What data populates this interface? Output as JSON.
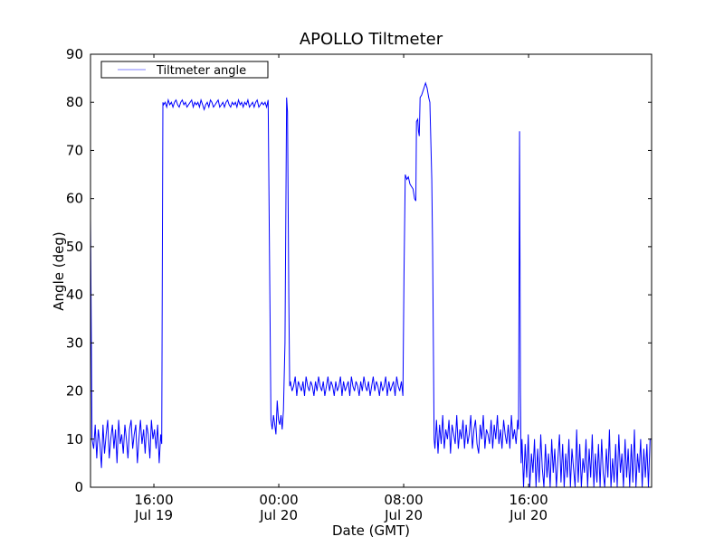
{
  "chart_data": {
    "type": "line",
    "title": "APOLLO Tiltmeter",
    "xlabel": "Date (GMT)",
    "ylabel": "Angle (deg)",
    "x_units": "hours since Jul 19 00:00 GMT",
    "xlim": [
      11.94,
      47.88
    ],
    "ylim": [
      0,
      90
    ],
    "yticks": [
      0,
      10,
      20,
      30,
      40,
      50,
      60,
      70,
      80,
      90
    ],
    "xticks": [
      {
        "value": 16,
        "time": "16:00",
        "date": "Jul 19"
      },
      {
        "value": 24,
        "time": "00:00",
        "date": "Jul 20"
      },
      {
        "value": 32,
        "time": "08:00",
        "date": "Jul 20"
      },
      {
        "value": 40,
        "time": "16:00",
        "date": "Jul 20"
      }
    ],
    "legend": {
      "position": "top-left",
      "entries": [
        "Tiltmeter angle"
      ]
    },
    "grid": false,
    "color": "#0000ff",
    "series": [
      {
        "name": "Tiltmeter angle",
        "segments": [
          {
            "start": 11.94,
            "step": 0.1,
            "values": [
              56,
              10,
              8,
              13,
              6,
              12,
              9,
              4,
              13,
              7,
              11,
              14,
              6,
              10,
              13,
              8,
              12,
              5,
              14,
              9,
              11,
              7,
              13,
              10,
              6,
              12,
              14,
              8,
              11,
              13,
              5,
              10,
              14,
              9,
              12,
              7,
              13,
              11,
              6,
              14,
              10,
              12,
              8,
              13,
              5,
              11
            ]
          },
          {
            "points": [
              [
                16.5,
                9
              ],
              [
                16.58,
                80
              ]
            ]
          },
          {
            "start": 16.62,
            "step": 0.1,
            "values": [
              79.5,
              80,
              79,
              80.5,
              79.5,
              80,
              79,
              80,
              80.5,
              79.5,
              79,
              80,
              80.5,
              79.5,
              80,
              79,
              79.5,
              80,
              80.5,
              79,
              80,
              79.5,
              80,
              79,
              80.5,
              79.5,
              78.5,
              79.5,
              80,
              79,
              80.5,
              80,
              79,
              79.5,
              80,
              80.5,
              79,
              79.5,
              80,
              79,
              80,
              80.5,
              79.5,
              79,
              80,
              79.5,
              80,
              79,
              80.5,
              79.5,
              80,
              79,
              80,
              79.5,
              80.5,
              79,
              79.5,
              80,
              79,
              80,
              80.5,
              79,
              79.5,
              80,
              79.5,
              80,
              79,
              80.5
            ]
          },
          {
            "start": 23.5,
            "step": 0.08,
            "values": [
              14,
              12,
              15,
              13,
              11,
              18,
              14,
              13,
              15,
              12,
              16
            ]
          },
          {
            "points": [
              [
                24.4,
                30
              ],
              [
                24.5,
                81
              ],
              [
                24.56,
                78
              ],
              [
                24.64,
                40
              ],
              [
                24.7,
                21
              ]
            ]
          },
          {
            "start": 24.75,
            "step": 0.1,
            "values": [
              22,
              20,
              21,
              23,
              19,
              22,
              21,
              20,
              22,
              19,
              23,
              21,
              20,
              22,
              21,
              19,
              22,
              20,
              23,
              21,
              20,
              22,
              19,
              21,
              23,
              20,
              22,
              21,
              19,
              22,
              20,
              21,
              23,
              19,
              22,
              20,
              21,
              22,
              19,
              23,
              21,
              20,
              22,
              21,
              19,
              22,
              20,
              23,
              21,
              20,
              22,
              19,
              21,
              23,
              20,
              22,
              21,
              19,
              22,
              20,
              21,
              23,
              19,
              22,
              20,
              21,
              22,
              19,
              23,
              21,
              20,
              22,
              19
            ]
          },
          {
            "points": [
              [
                32.02,
                44
              ],
              [
                32.1,
                65
              ],
              [
                32.2,
                64
              ],
              [
                32.3,
                64.5
              ],
              [
                32.4,
                63
              ],
              [
                32.5,
                62.5
              ],
              [
                32.6,
                62
              ],
              [
                32.7,
                60
              ],
              [
                32.78,
                59.5
              ],
              [
                32.82,
                76
              ],
              [
                32.9,
                76.5
              ],
              [
                32.95,
                74
              ],
              [
                33.0,
                73
              ],
              [
                33.05,
                81
              ],
              [
                33.15,
                81.5
              ],
              [
                33.3,
                83
              ],
              [
                33.4,
                84
              ],
              [
                33.5,
                83
              ],
              [
                33.6,
                81
              ],
              [
                33.68,
                80
              ],
              [
                33.8,
                64
              ],
              [
                33.85,
                50
              ],
              [
                33.95,
                10
              ]
            ]
          },
          {
            "start": 34.0,
            "step": 0.1,
            "values": [
              8,
              14,
              7,
              13,
              9,
              15,
              8,
              12,
              10,
              14,
              7,
              13,
              11,
              9,
              15,
              8,
              12,
              10,
              14,
              8,
              13,
              9,
              11,
              15,
              8,
              12,
              14,
              9,
              7,
              13,
              10,
              15,
              8,
              12,
              11,
              9,
              14,
              8,
              13,
              10,
              15,
              9,
              12,
              8,
              14,
              11,
              9,
              13,
              8,
              15,
              10,
              12,
              9,
              14
            ]
          },
          {
            "points": [
              [
                39.36,
                12
              ],
              [
                39.42,
                74
              ],
              [
                39.48,
                20
              ],
              [
                39.52,
                5
              ]
            ]
          },
          {
            "start": 39.58,
            "step": 0.1,
            "values": [
              10,
              0,
              9,
              2,
              11,
              0,
              7,
              3,
              10,
              0,
              8,
              1,
              11,
              4,
              0,
              9,
              2,
              7,
              0,
              10,
              3,
              8,
              0,
              6,
              11,
              1,
              9,
              0,
              7,
              2,
              10,
              0,
              8,
              4,
              0,
              12,
              1,
              9,
              0,
              6,
              3,
              10,
              0,
              8,
              2,
              11,
              0,
              7,
              1,
              9,
              0,
              10,
              3,
              0,
              8,
              2,
              12,
              0,
              6,
              1,
              9,
              0,
              11,
              3,
              7,
              0,
              10,
              2,
              8,
              0,
              9,
              1,
              12,
              0,
              7,
              3,
              10,
              0,
              8,
              2,
              9,
              0,
              10,
              10
            ]
          }
        ]
      }
    ]
  }
}
